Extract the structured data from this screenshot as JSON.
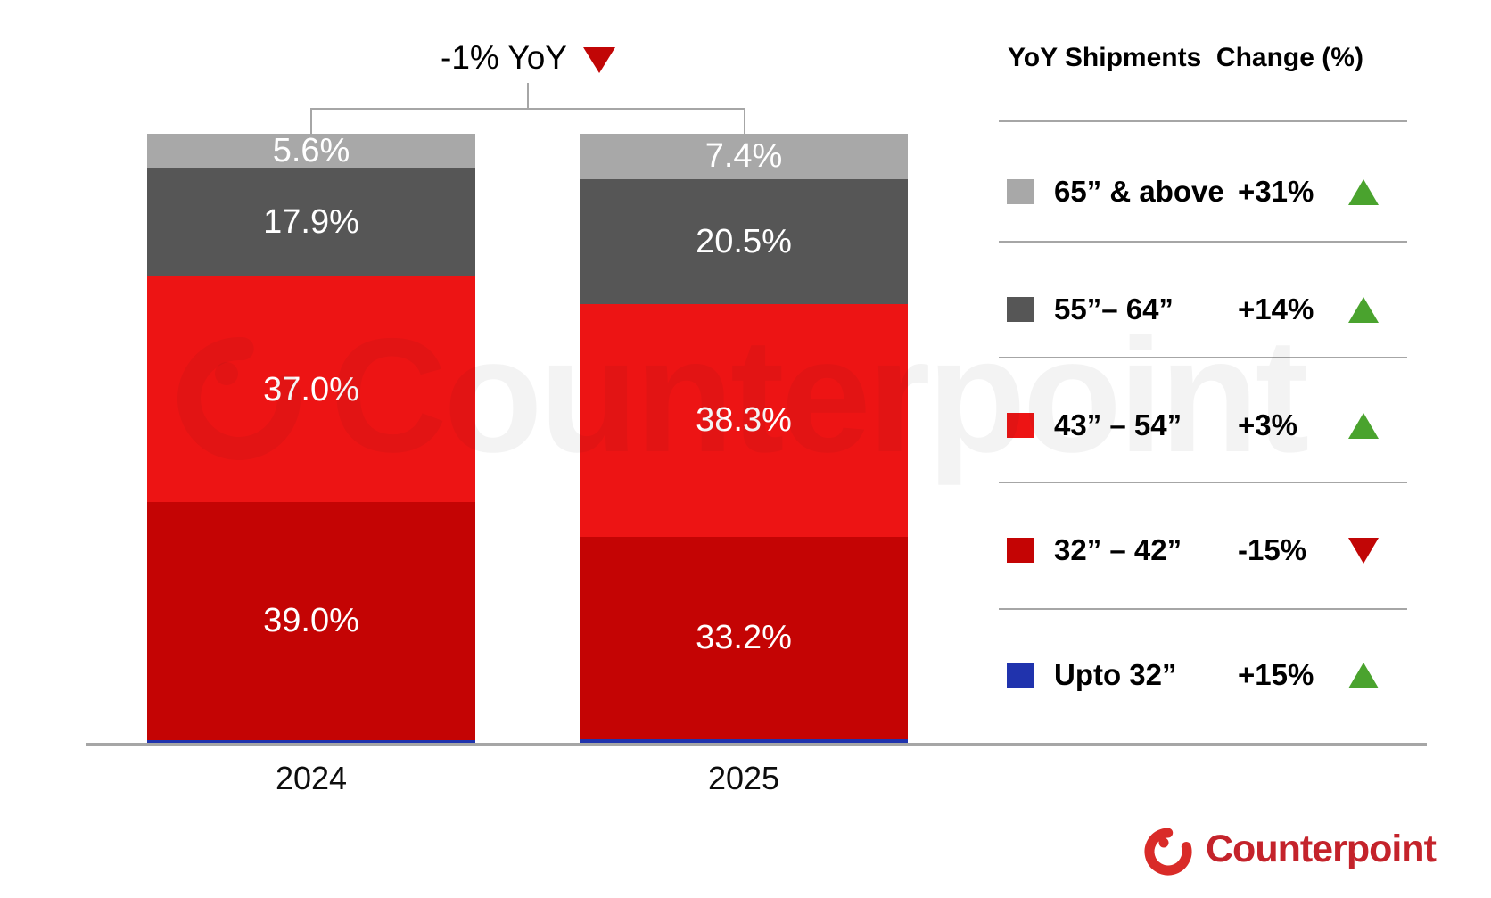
{
  "header": {
    "title": "-1% YoY",
    "arrow_direction": "down"
  },
  "chart_data": {
    "type": "bar",
    "subtype": "stacked-100-percent",
    "title": "-1% YoY",
    "categories": [
      "2024",
      "2025"
    ],
    "series": [
      {
        "name": "Upto 32”",
        "color": "#2033ad",
        "values": [
          0.5,
          0.6
        ],
        "show_value_labels": false
      },
      {
        "name": "32” – 42”",
        "color": "#c40404",
        "values": [
          39.0,
          33.2
        ],
        "show_value_labels": true
      },
      {
        "name": "43” – 54”",
        "color": "#ed1414",
        "values": [
          37.0,
          38.3
        ],
        "show_value_labels": true
      },
      {
        "name": "55”– 64”",
        "color": "#565656",
        "values": [
          17.9,
          20.5
        ],
        "show_value_labels": true
      },
      {
        "name": "65” & above",
        "color": "#a8a8a8",
        "values": [
          5.6,
          7.4
        ],
        "show_value_labels": true
      }
    ],
    "value_label_suffix": "%",
    "ylim": [
      0,
      100
    ],
    "grid": false,
    "legend_position": "right"
  },
  "legend": {
    "title": "YoY Shipments  Change (%)",
    "rows": [
      {
        "label": "65” & above",
        "change": "+31%",
        "direction": "up",
        "swatch": "#a8a8a8"
      },
      {
        "label": "55”– 64”",
        "change": "+14%",
        "direction": "up",
        "swatch": "#565656"
      },
      {
        "label": "43” – 54”",
        "change": "+3%",
        "direction": "up",
        "swatch": "#ed1414"
      },
      {
        "label": "32” – 42”",
        "change": "-15%",
        "direction": "down",
        "swatch": "#c40404"
      },
      {
        "label": "Upto 32”",
        "change": "+15%",
        "direction": "up",
        "swatch": "#2033ad"
      }
    ]
  },
  "colors": {
    "up_triangle": "#4aa32e",
    "down_triangle": "#c10606",
    "axis_line": "#a6a6a6",
    "separator": "#a6a6a6",
    "bar_value_text": "#ffffff",
    "brand_red": "#c4232b"
  },
  "watermark": {
    "text": "Counterpoint"
  },
  "branding": {
    "name": "Counterpoint"
  }
}
